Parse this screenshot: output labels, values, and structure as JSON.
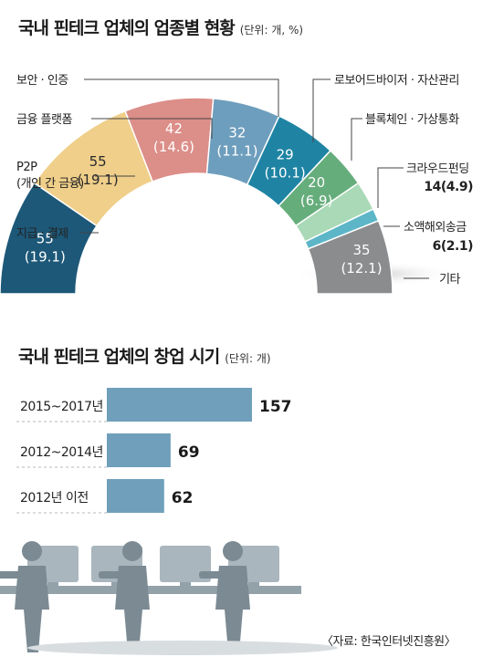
{
  "colors": {
    "navy": "#1d5878",
    "yellow": "#efcf8a",
    "salmon": "#dc8e89",
    "steel": "#6e9ebd",
    "teal": "#1f84a4",
    "green": "#66ad7c",
    "mint": "#a9d9b6",
    "aqua": "#5cb6c7",
    "gray": "#8a8c8e",
    "bar": "#6f9fbb"
  },
  "chart_data": [
    {
      "type": "pie",
      "title": "국내 핀테크 업체의 업종별 현황",
      "unit_note": "(단위: 개, %)",
      "slices": [
        {
          "name": "지급 · 결제",
          "value": 55,
          "percent": 19.1,
          "value_label": "55",
          "pct_label": "(19.1)",
          "color": "navy"
        },
        {
          "name_lines": [
            "P2P",
            "(개인 간 금융)"
          ],
          "name": "P2P (개인 간 금융)",
          "value": 55,
          "percent": 19.1,
          "value_label": "55",
          "pct_label": "(19.1)",
          "color": "yellow"
        },
        {
          "name": "금융 플랫폼",
          "value": 42,
          "percent": 14.6,
          "value_label": "42",
          "pct_label": "(14.6)",
          "color": "salmon"
        },
        {
          "name": "보안 · 인증",
          "value": 32,
          "percent": 11.1,
          "value_label": "32",
          "pct_label": "(11.1)",
          "color": "steel"
        },
        {
          "name": "로보어드바이저 · 자산관리",
          "value": 29,
          "percent": 10.1,
          "value_label": "29",
          "pct_label": "(10.1)",
          "color": "teal"
        },
        {
          "name": "블록체인 · 가상통화",
          "value": 20,
          "percent": 6.9,
          "value_label": "20",
          "pct_label": "(6.9)",
          "color": "green"
        },
        {
          "name": "크라우드펀딩",
          "value": 14,
          "percent": 4.9,
          "value_label": "14",
          "pct_label": "(4.9)",
          "color": "mint"
        },
        {
          "name": "소액해외송금",
          "value": 6,
          "percent": 2.1,
          "value_label": "6",
          "pct_label": "(2.1)",
          "color": "aqua"
        },
        {
          "name": "기타",
          "value": 35,
          "percent": 12.1,
          "value_label": "35",
          "pct_label": "(12.1)",
          "color": "gray"
        }
      ]
    },
    {
      "type": "bar",
      "orientation": "horizontal",
      "title": "국내 핀테크 업체의 창업 시기",
      "unit_note": "(단위: 개)",
      "categories": [
        "2015~2017년",
        "2012~2014년",
        "2012년 이전"
      ],
      "values": [
        157,
        69,
        62
      ],
      "xlim": [
        0,
        157
      ]
    }
  ],
  "source": "〈자료: 한국인터넷진흥원〉"
}
